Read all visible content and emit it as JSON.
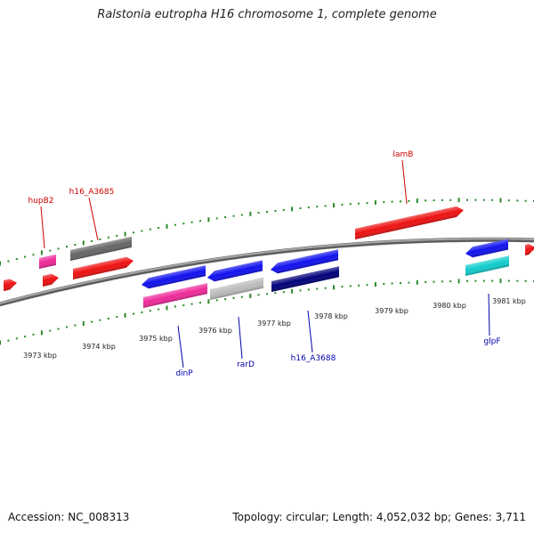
{
  "title": "Ralstonia eutropha H16 chromosome 1, complete genome",
  "footer": {
    "accession": "Accession: NC_008313",
    "info": "Topology: circular; Length: 4,052,032 bp; Genes: 3,711"
  },
  "colors": {
    "backbone": "#8c8c8c",
    "tick": "#2a8a2a",
    "forward_label": "#cc0000",
    "reverse_label": "#0000aa",
    "red": "#ee1111",
    "gray": "#666666",
    "pink": "#ee2a9a",
    "blue": "#1111ee",
    "lightgray": "#bbbbbb",
    "navy": "#00007a",
    "cyan": "#11cccc"
  },
  "kbp_labels": [
    "3973 kbp",
    "3974 kbp",
    "3975 kbp",
    "3976 kbp",
    "3977 kbp",
    "3978 kbp",
    "3979 kbp",
    "3980 kbp",
    "3981 kbp"
  ],
  "gene_labels": [
    {
      "name": "hupB2",
      "strand": "forward"
    },
    {
      "name": "h16_A3685",
      "strand": "forward"
    },
    {
      "name": "lamB",
      "strand": "forward"
    },
    {
      "name": "dinP",
      "strand": "reverse"
    },
    {
      "name": "rarD",
      "strand": "reverse"
    },
    {
      "name": "h16_A3688",
      "strand": "reverse"
    },
    {
      "name": "glpF",
      "strand": "reverse"
    }
  ],
  "features": [
    {
      "color": "red",
      "strand": "forward"
    },
    {
      "color": "pink",
      "strand": "forward"
    },
    {
      "color": "red",
      "strand": "forward"
    },
    {
      "color": "gray",
      "strand": "forward"
    },
    {
      "color": "red",
      "strand": "forward"
    },
    {
      "color": "red",
      "strand": "forward"
    },
    {
      "color": "blue",
      "strand": "reverse"
    },
    {
      "color": "pink",
      "strand": "reverse"
    },
    {
      "color": "blue",
      "strand": "reverse"
    },
    {
      "color": "lightgray",
      "strand": "reverse"
    },
    {
      "color": "blue",
      "strand": "reverse"
    },
    {
      "color": "navy",
      "strand": "reverse"
    },
    {
      "color": "blue",
      "strand": "reverse"
    },
    {
      "color": "cyan",
      "strand": "reverse"
    },
    {
      "color": "red",
      "strand": "forward"
    }
  ]
}
